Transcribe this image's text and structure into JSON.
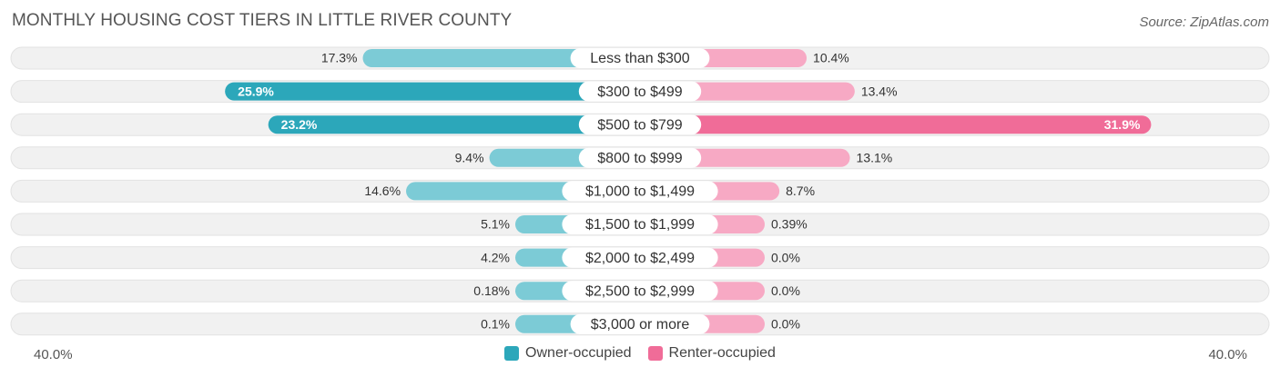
{
  "header": {
    "title": "MONTHLY HOUSING COST TIERS IN LITTLE RIVER COUNTY",
    "source": "Source: ZipAtlas.com"
  },
  "axis": {
    "left_label": "40.0%",
    "right_label": "40.0%"
  },
  "legend": {
    "owner_label": "Owner-occupied",
    "renter_label": "Renter-occupied"
  },
  "colors": {
    "owner": "#2ca7ba",
    "owner_light": "#7ccbd6",
    "renter": "#f06c98",
    "renter_light": "#f7a9c4",
    "row_bg": "#f1f1f1"
  },
  "chart_data": {
    "type": "bar",
    "orientation": "horizontal-diverging",
    "title": "MONTHLY HOUSING COST TIERS IN LITTLE RIVER COUNTY",
    "xlim": [
      -40,
      40
    ],
    "categories": [
      "Less than $300",
      "$300 to $499",
      "$500 to $799",
      "$800 to $999",
      "$1,000 to $1,499",
      "$1,500 to $1,999",
      "$2,000 to $2,499",
      "$2,500 to $2,999",
      "$3,000 or more"
    ],
    "series": [
      {
        "name": "Owner-occupied",
        "values": [
          17.3,
          25.9,
          23.2,
          9.4,
          14.6,
          5.1,
          4.2,
          0.18,
          0.1
        ],
        "labels": [
          "17.3%",
          "25.9%",
          "23.2%",
          "9.4%",
          "14.6%",
          "5.1%",
          "4.2%",
          "0.18%",
          "0.1%"
        ]
      },
      {
        "name": "Renter-occupied",
        "values": [
          10.4,
          13.4,
          31.9,
          13.1,
          8.7,
          0.39,
          0.0,
          0.0,
          0.0
        ],
        "labels": [
          "10.4%",
          "13.4%",
          "31.9%",
          "13.1%",
          "8.7%",
          "0.39%",
          "0.0%",
          "0.0%",
          "0.0%"
        ]
      }
    ],
    "legend_position": "bottom"
  }
}
